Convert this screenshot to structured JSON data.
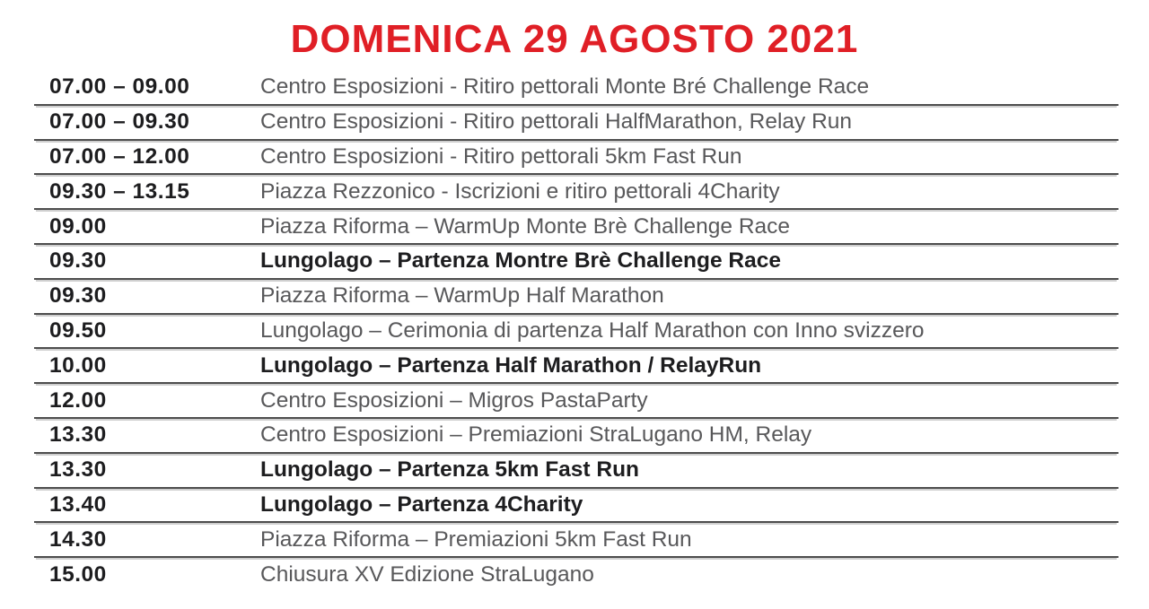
{
  "title": "DOMENICA 29 AGOSTO 2021",
  "colors": {
    "accent_red": "#e01f26",
    "time_text": "#1d1d1f",
    "description_text": "#58585a",
    "divider": "#4d4d4d"
  },
  "schedule": {
    "rows": [
      {
        "time": "07.00 – 09.00",
        "description": "Centro Esposizioni - Ritiro pettorali Monte Bré Challenge Race",
        "bold": false
      },
      {
        "time": "07.00 – 09.30",
        "description": "Centro Esposizioni - Ritiro pettorali HalfMarathon, Relay Run",
        "bold": false
      },
      {
        "time": "07.00 – 12.00",
        "description": "Centro Esposizioni - Ritiro pettorali 5km Fast Run",
        "bold": false
      },
      {
        "time": "09.30 – 13.15",
        "description": "Piazza Rezzonico - Iscrizioni e ritiro pettorali 4Charity",
        "bold": false
      },
      {
        "time": "09.00",
        "description": "Piazza Riforma – WarmUp Monte Brè Challenge Race",
        "bold": false
      },
      {
        "time": "09.30",
        "description": "Lungolago – Partenza Montre Brè Challenge Race",
        "bold": true
      },
      {
        "time": "09.30",
        "description": "Piazza Riforma – WarmUp Half Marathon",
        "bold": false
      },
      {
        "time": "09.50",
        "description": "Lungolago – Cerimonia di partenza Half Marathon con Inno svizzero",
        "bold": false
      },
      {
        "time": "10.00",
        "description": "Lungolago – Partenza Half Marathon / RelayRun",
        "bold": true
      },
      {
        "time": "12.00",
        "description": "Centro Esposizioni – Migros PastaParty",
        "bold": false
      },
      {
        "time": "13.30",
        "description": "Centro Esposizioni – Premiazioni StraLugano HM, Relay",
        "bold": false
      },
      {
        "time": "13.30",
        "description": "Lungolago – Partenza 5km Fast Run",
        "bold": true
      },
      {
        "time": "13.40",
        "description": "Lungolago – Partenza 4Charity",
        "bold": true
      },
      {
        "time": "14.30",
        "description": "Piazza Riforma – Premiazioni 5km Fast Run",
        "bold": false
      },
      {
        "time": "15.00",
        "description": "Chiusura XV Edizione StraLugano",
        "bold": false
      }
    ]
  }
}
